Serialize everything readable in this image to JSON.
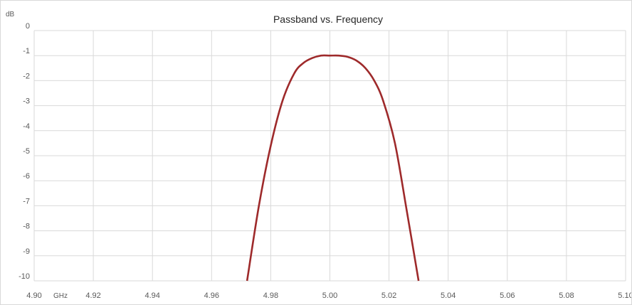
{
  "chart_data": {
    "type": "line",
    "title": "Passband vs. Frequency",
    "xlabel": "GHz",
    "ylabel": "dB",
    "xlim": [
      4.9,
      5.1
    ],
    "ylim": [
      -10,
      0
    ],
    "x_tick_labels": [
      "4.90",
      "4.92",
      "4.94",
      "4.96",
      "4.98",
      "5.00",
      "5.02",
      "5.04",
      "5.06",
      "5.08",
      "5.10"
    ],
    "y_tick_labels": [
      "0",
      "-1",
      "-2",
      "-3",
      "-4",
      "-5",
      "-6",
      "-7",
      "-8",
      "-9",
      "-10"
    ],
    "grid": true,
    "legend": "none",
    "series": [
      {
        "color": "#9e2a2b",
        "x": [
          4.972,
          4.976,
          4.98,
          4.984,
          4.988,
          4.991,
          4.994,
          4.997,
          5.0,
          5.003,
          5.006,
          5.009,
          5.012,
          5.015,
          5.018,
          5.022,
          5.026,
          5.03
        ],
        "y": [
          -10.0,
          -7.0,
          -4.6,
          -2.8,
          -1.7,
          -1.3,
          -1.1,
          -1.0,
          -1.0,
          -1.0,
          -1.05,
          -1.2,
          -1.5,
          -2.0,
          -2.8,
          -4.5,
          -7.2,
          -10.0
        ]
      }
    ]
  }
}
